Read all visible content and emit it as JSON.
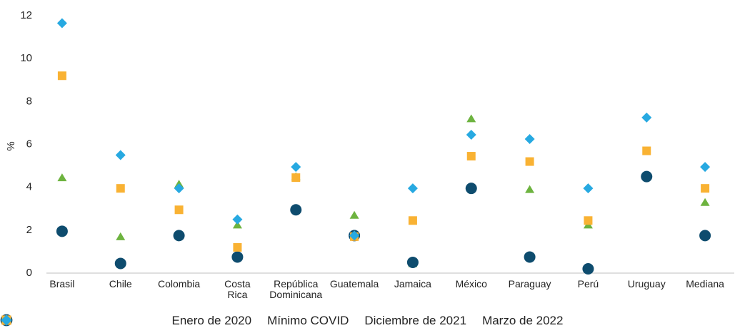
{
  "chart_data": {
    "type": "scatter",
    "y_label": "%",
    "categories": [
      "Brasil",
      "Chile",
      "Colombia",
      "Costa\nRica",
      "República\nDominicana",
      "Guatemala",
      "Jamaica",
      "México",
      "Paraguay",
      "Perú",
      "Uruguay",
      "Mediana"
    ],
    "series": [
      {
        "name": "Enero de 2020",
        "color": "#6db33f",
        "marker": "triangle",
        "values": [
          4.45,
          1.7,
          4.15,
          2.25,
          4.5,
          2.7,
          0.45,
          7.2,
          3.9,
          2.25,
          null,
          3.3
        ]
      },
      {
        "name": "Mínimo COVID",
        "color": "#0e4c6e",
        "marker": "circle",
        "values": [
          1.95,
          0.45,
          1.75,
          0.75,
          2.95,
          1.75,
          0.5,
          3.95,
          0.75,
          0.2,
          4.5,
          1.75
        ]
      },
      {
        "name": "Diciembre de 2021",
        "color": "#f9b233",
        "marker": "square",
        "values": [
          9.2,
          3.95,
          2.95,
          1.2,
          4.45,
          1.7,
          2.45,
          5.45,
          5.2,
          2.45,
          5.7,
          3.95
        ]
      },
      {
        "name": "Marzo de 2022",
        "color": "#27a9e1",
        "marker": "diamond",
        "values": [
          11.65,
          5.5,
          3.95,
          2.5,
          4.95,
          1.75,
          3.95,
          6.45,
          6.25,
          3.95,
          7.25,
          4.95
        ]
      }
    ],
    "ylim": [
      0,
      12
    ],
    "yticks": [
      0,
      2,
      4,
      6,
      8,
      10,
      12
    ],
    "grid": false,
    "legend": "bottom"
  }
}
